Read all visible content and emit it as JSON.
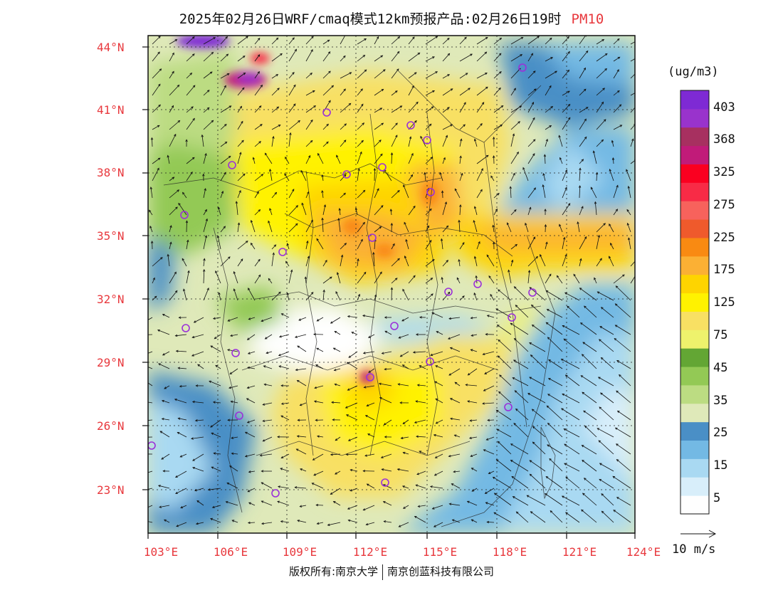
{
  "title": {
    "text": "2025年02月26日WRF/cmaq模式12km预报产品:02月26日19时",
    "product": "PM10"
  },
  "axes": {
    "lat_labels": [
      "44°N",
      "41°N",
      "38°N",
      "35°N",
      "32°N",
      "29°N",
      "26°N",
      "23°N"
    ],
    "lon_labels": [
      "103°E",
      "106°E",
      "109°E",
      "112°E",
      "115°E",
      "118°E",
      "121°E",
      "124°E"
    ]
  },
  "legend": {
    "unit": "(ug/m3)",
    "labels": [
      "403",
      "368",
      "325",
      "275",
      "225",
      "175",
      "125",
      "75",
      "45",
      "35",
      "25",
      "15",
      "5"
    ],
    "colors": [
      "#fefefe",
      "#d8eefa",
      "#a9d9f2",
      "#73b9e4",
      "#4a8fc6",
      "#dfe9b9",
      "#bcdc82",
      "#93c955",
      "#63a634",
      "#eef26c",
      "#f8e063",
      "#fff200",
      "#fed400",
      "#fbb034",
      "#f98a12",
      "#ef5a2c",
      "#f7625c",
      "#f82b46",
      "#fa0020",
      "#c11b79",
      "#a73060",
      "#9933cc",
      "#7e2ad4"
    ],
    "wind_reference": "10 m/s"
  },
  "footer": {
    "left": "版权所有:南京大学",
    "right": "南京创蓝科技有限公司"
  },
  "map": {
    "region": "China East",
    "extent": {
      "lon": [
        102.8,
        124
      ],
      "lat": [
        21.9,
        44.3
      ]
    },
    "variable": "PM10",
    "wind_field": true,
    "city_markers": true
  }
}
